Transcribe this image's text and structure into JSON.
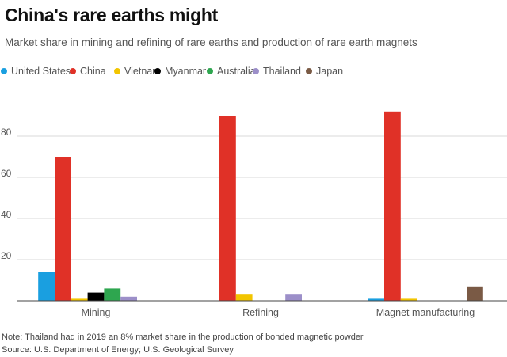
{
  "header": {
    "title": "China's rare earths might",
    "subtitle": "Market share in mining and refining of rare earths and production of rare earth magnets"
  },
  "footer": {
    "note": "Note: Thailand had in 2019 an 8% market share in the production of bonded magnetic powder",
    "source": "Source: U.S. Department of Energy; U.S. Geological Survey"
  },
  "chart_data": {
    "type": "bar",
    "title": "China's rare earths might",
    "subtitle": "Market share in mining and refining of rare earths and production of rare earth magnets",
    "xlabel": "",
    "ylabel": "",
    "ylim": [
      0,
      95
    ],
    "yticks": [
      20,
      40,
      60,
      80
    ],
    "grid": true,
    "legend_position": "top",
    "categories": [
      "Mining",
      "Refining",
      "Magnet manufacturing"
    ],
    "series": [
      {
        "name": "United States",
        "color": "#1a9fe0",
        "values": [
          14,
          null,
          1
        ]
      },
      {
        "name": "China",
        "color": "#e03127",
        "values": [
          70,
          90,
          92
        ]
      },
      {
        "name": "Vietnam",
        "color": "#f2c500",
        "values": [
          1,
          3,
          1
        ]
      },
      {
        "name": "Myanmar",
        "color": "#000000",
        "values": [
          4,
          null,
          null
        ]
      },
      {
        "name": "Australia",
        "color": "#2ea64f",
        "values": [
          6,
          null,
          null
        ]
      },
      {
        "name": "Thailand",
        "color": "#9c8fc9",
        "values": [
          2,
          3,
          null
        ]
      },
      {
        "name": "Japan",
        "color": "#7a5a45",
        "values": [
          null,
          null,
          7
        ]
      }
    ]
  }
}
